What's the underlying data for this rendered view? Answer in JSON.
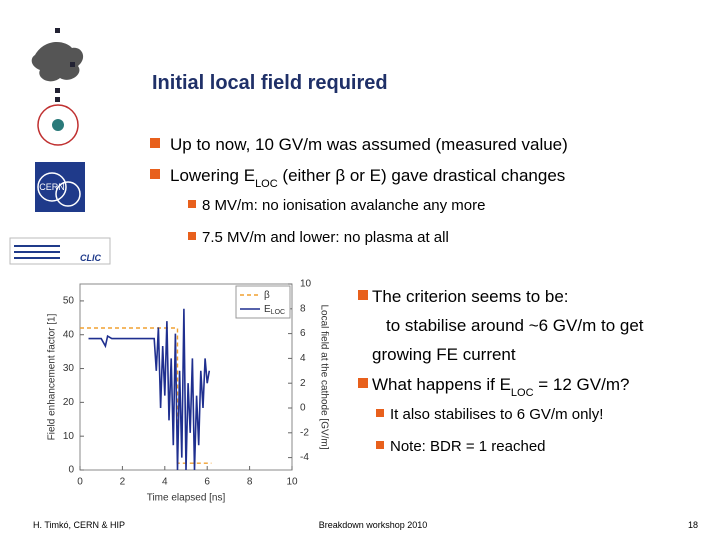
{
  "title": "Initial local field required",
  "logos": {
    "cern": "CERN",
    "clic": "CLIC"
  },
  "bullets": [
    {
      "level": 1,
      "segments": [
        {
          "text": "Up to now, 10 GV/m was assumed (measured value)"
        }
      ]
    },
    {
      "level": 1,
      "segments": [
        {
          "text": "Lowering E"
        },
        {
          "text": "LOC",
          "sub": true
        },
        {
          "text": " (either β or E) gave drastical changes"
        }
      ]
    },
    {
      "level": 2,
      "segments": [
        {
          "text": "8 MV/m: no ionisation avalanche any more"
        }
      ]
    },
    {
      "level": 2,
      "segments": [
        {
          "text": "7.5 MV/m and lower: no plasma at all"
        }
      ]
    },
    {
      "level": 1,
      "segments": [
        {
          "text": "The criterion seems to be:"
        }
      ]
    },
    {
      "level": 1,
      "bullet": false,
      "segments": [
        {
          "text": "to stabilise around ~6 GV/m to get"
        }
      ]
    },
    {
      "level": 1,
      "bullet": false,
      "segments": [
        {
          "text": "growing FE current"
        }
      ]
    },
    {
      "level": 1,
      "segments": [
        {
          "text": "What happens if E"
        },
        {
          "text": "LOC",
          "sub": true
        },
        {
          "text": " = 12 GV/m?"
        }
      ]
    },
    {
      "level": 2,
      "segments": [
        {
          "text": "It also stabilises to 6 GV/m only!"
        }
      ]
    },
    {
      "level": 2,
      "segments": [
        {
          "text": "Note: BDR = 1 reached"
        }
      ]
    }
  ],
  "footer": {
    "author": "H. Timkó, CERN & HIP",
    "event": "Breakdown workshop 2010",
    "page": "18"
  },
  "chart_data": {
    "type": "line",
    "x_label": "Time elapsed [ns]",
    "y_label": "Field enhancement factor [1]",
    "y2_label": "Local field at the cathode [GV/m]",
    "xlim": [
      0,
      10
    ],
    "xticks": [
      0,
      2,
      4,
      6,
      8,
      10
    ],
    "ylim": [
      0,
      55
    ],
    "yticks": [
      0,
      10,
      20,
      30,
      40,
      50
    ],
    "y2lim": [
      -5,
      10
    ],
    "y2ticks": [
      -4,
      -2,
      0,
      2,
      4,
      6,
      8,
      10
    ],
    "legend": "upper right",
    "series": [
      {
        "name": "β",
        "color": "#f0a030",
        "dashed": true,
        "x": [
          0,
          4.6,
          4.6,
          6.2
        ],
        "values": [
          42,
          42,
          2,
          2
        ]
      },
      {
        "name": "E",
        "name_subscript": "LOC",
        "color": "#1f2f8f",
        "axis": "y2",
        "x": [
          0.4,
          1.0,
          1.2,
          1.3,
          1.5,
          2.5,
          3.5,
          3.6,
          3.7,
          3.8,
          3.9,
          4.0,
          4.1,
          4.2,
          4.3,
          4.4,
          4.5,
          4.6,
          4.7,
          4.8,
          4.9,
          5.0,
          5.1,
          5.2,
          5.3,
          5.4,
          5.5,
          5.6,
          5.7,
          5.8,
          5.9,
          6.0,
          6.1
        ],
        "values": [
          5.6,
          5.6,
          5.0,
          5.8,
          5.6,
          5.6,
          5.6,
          3,
          6.5,
          0,
          5,
          1,
          7,
          -1,
          4,
          -3,
          6,
          -5,
          3,
          -4,
          8,
          -5,
          2,
          -2,
          4,
          -5,
          1,
          -3,
          3,
          0,
          4,
          2,
          3
        ]
      }
    ]
  }
}
